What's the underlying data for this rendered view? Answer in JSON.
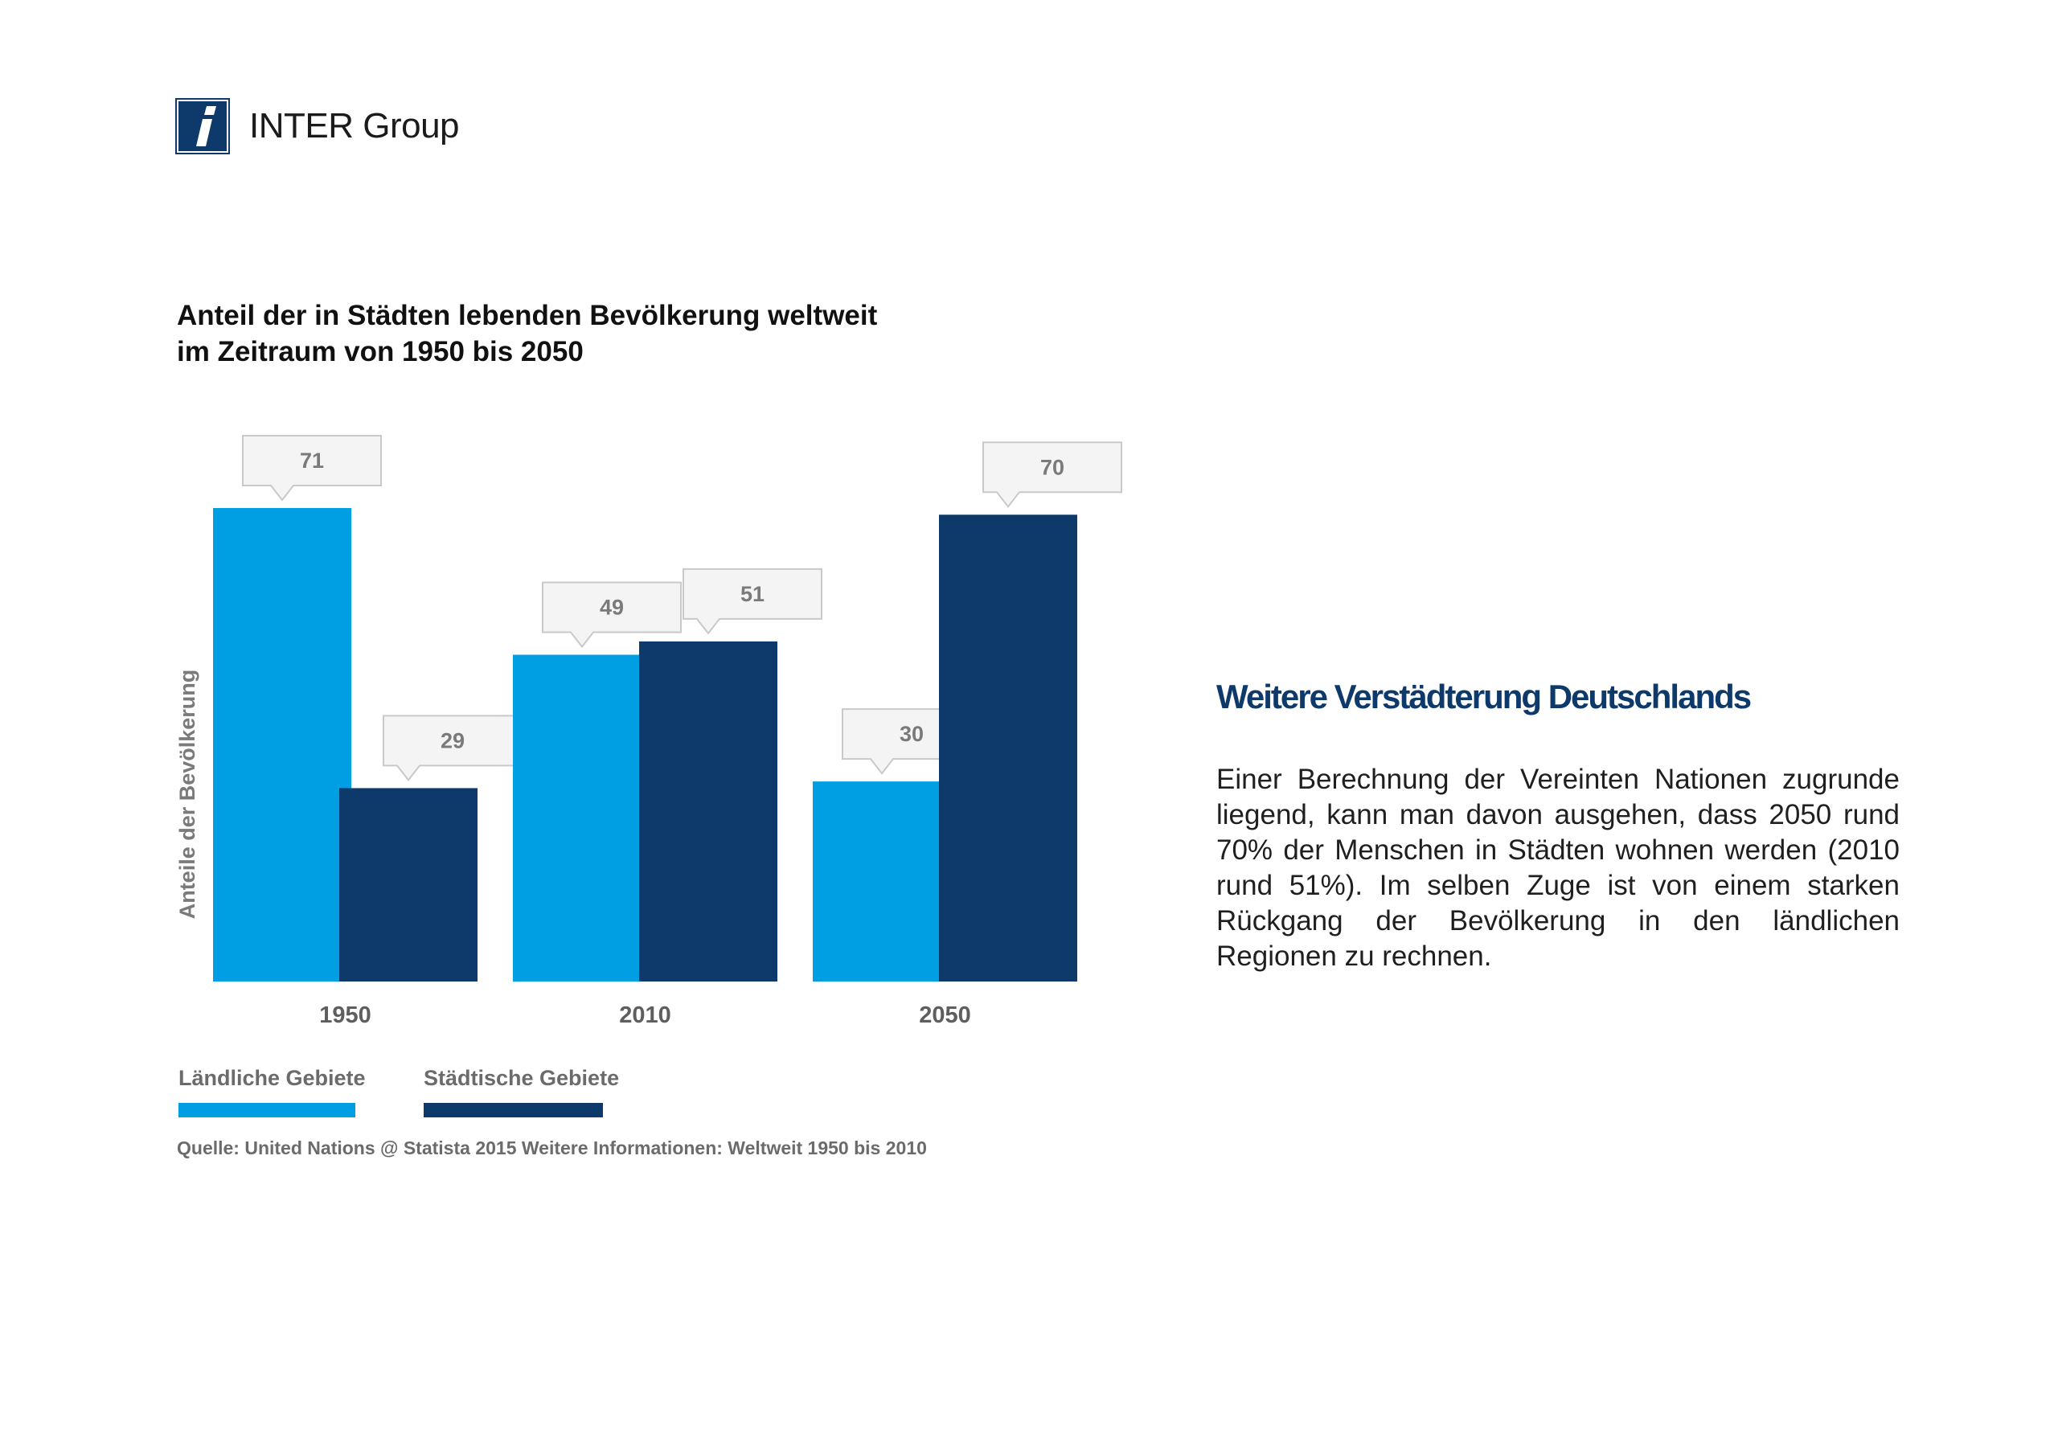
{
  "header": {
    "brand": "INTER Group",
    "logo_icon": "inter-i-logo-icon",
    "logo_color": "#0d3a6b"
  },
  "chart_title": {
    "line1": "Anteil der in Städten lebenden Bevölkerung weltweit",
    "line2": "im Zeitraum von 1950 bis 2050"
  },
  "chart_data": {
    "type": "bar",
    "title": "Anteil der in Städten lebenden Bevölkerung weltweit im Zeitraum von 1950 bis 2050",
    "ylabel": "Anteile der Bevölkerung",
    "xlabel": "",
    "categories": [
      "1950",
      "2010",
      "2050"
    ],
    "series": [
      {
        "name": "Ländliche Gebiete",
        "color": "#009fe3",
        "values": [
          71,
          49,
          30
        ]
      },
      {
        "name": "Städtische Gebiete",
        "color": "#0d3a6b",
        "values": [
          29,
          51,
          70
        ]
      }
    ],
    "ylim": [
      0,
      71
    ],
    "grid": false,
    "data_labels": true,
    "legend_position": "bottom-left"
  },
  "source": "Quelle: United Nations @ Statista 2015 Weitere Informationen: Weltweit 1950 bis 2010",
  "side": {
    "heading": "Weitere Verstädterung Deutschlands",
    "text": "Einer Berechnung der Vereinten Nationen zugrunde liegend, kann man davon ausgehen, dass 2050 rund 70% der Menschen in Städten wohnen werden (2010 rund 51%). Im selben Zuge ist von einem starken Rückgang der Bevölkerung in den ländlichen Regionen zu rechnen."
  }
}
